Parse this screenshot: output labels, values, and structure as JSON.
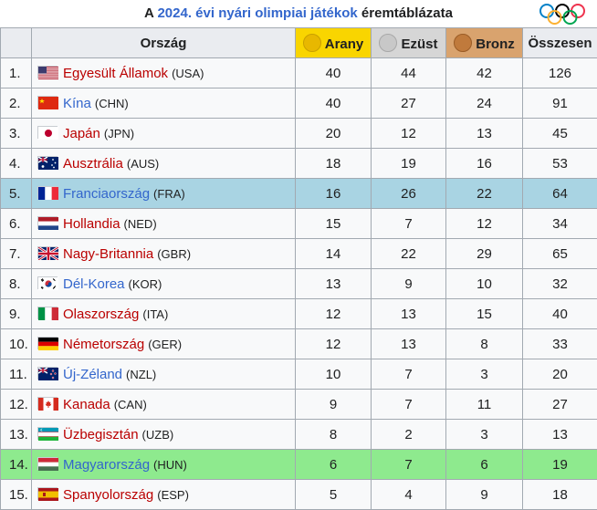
{
  "caption": {
    "prefix": "A ",
    "year_link": "2024. évi nyári olimpiai játékok",
    "suffix": " éremtáblázata"
  },
  "headers": {
    "rank": "",
    "nation": "Ország",
    "gold": "Arany",
    "silver": "Ezüst",
    "bronze": "Bronz",
    "total": "Összesen"
  },
  "rows": [
    {
      "rank": "1.",
      "name": "Egyesült Államok",
      "code": "(USA)",
      "gold": "40",
      "silver": "44",
      "bronze": "42",
      "total": "126",
      "red": true
    },
    {
      "rank": "2.",
      "name": "Kína",
      "code": "(CHN)",
      "gold": "40",
      "silver": "27",
      "bronze": "24",
      "total": "91",
      "red": false
    },
    {
      "rank": "3.",
      "name": "Japán",
      "code": "(JPN)",
      "gold": "20",
      "silver": "12",
      "bronze": "13",
      "total": "45",
      "red": true
    },
    {
      "rank": "4.",
      "name": "Ausztrália",
      "code": "(AUS)",
      "gold": "18",
      "silver": "19",
      "bronze": "16",
      "total": "53",
      "red": true
    },
    {
      "rank": "5.",
      "name": "Franciaország",
      "code": "(FRA)",
      "gold": "16",
      "silver": "26",
      "bronze": "22",
      "total": "64",
      "red": false,
      "hl": "blue"
    },
    {
      "rank": "6.",
      "name": "Hollandia",
      "code": "(NED)",
      "gold": "15",
      "silver": "7",
      "bronze": "12",
      "total": "34",
      "red": true
    },
    {
      "rank": "7.",
      "name": "Nagy-Britannia",
      "code": "(GBR)",
      "gold": "14",
      "silver": "22",
      "bronze": "29",
      "total": "65",
      "red": true
    },
    {
      "rank": "8.",
      "name": "Dél-Korea",
      "code": "(KOR)",
      "gold": "13",
      "silver": "9",
      "bronze": "10",
      "total": "32",
      "red": false
    },
    {
      "rank": "9.",
      "name": "Olaszország",
      "code": "(ITA)",
      "gold": "12",
      "silver": "13",
      "bronze": "15",
      "total": "40",
      "red": true
    },
    {
      "rank": "10.",
      "name": "Németország",
      "code": "(GER)",
      "gold": "12",
      "silver": "13",
      "bronze": "8",
      "total": "33",
      "red": true
    },
    {
      "rank": "11.",
      "name": "Új-Zéland",
      "code": "(NZL)",
      "gold": "10",
      "silver": "7",
      "bronze": "3",
      "total": "20",
      "red": false
    },
    {
      "rank": "12.",
      "name": "Kanada",
      "code": "(CAN)",
      "gold": "9",
      "silver": "7",
      "bronze": "11",
      "total": "27",
      "red": true
    },
    {
      "rank": "13.",
      "name": "Üzbegisztán",
      "code": "(UZB)",
      "gold": "8",
      "silver": "2",
      "bronze": "3",
      "total": "13",
      "red": true
    },
    {
      "rank": "14.",
      "name": "Magyarország",
      "code": "(HUN)",
      "gold": "6",
      "silver": "7",
      "bronze": "6",
      "total": "19",
      "red": false,
      "hl": "green"
    },
    {
      "rank": "15.",
      "name": "Spanyolország",
      "code": "(ESP)",
      "gold": "5",
      "silver": "4",
      "bronze": "9",
      "total": "18",
      "red": true
    }
  ],
  "colors": {
    "link": "#3366cc",
    "redlink": "#ba0000",
    "gold": "#f9d500",
    "silver": "#d6d6d6",
    "bronze": "#d9a36e",
    "host": "#a9d4e3",
    "self": "#8eea8e"
  }
}
